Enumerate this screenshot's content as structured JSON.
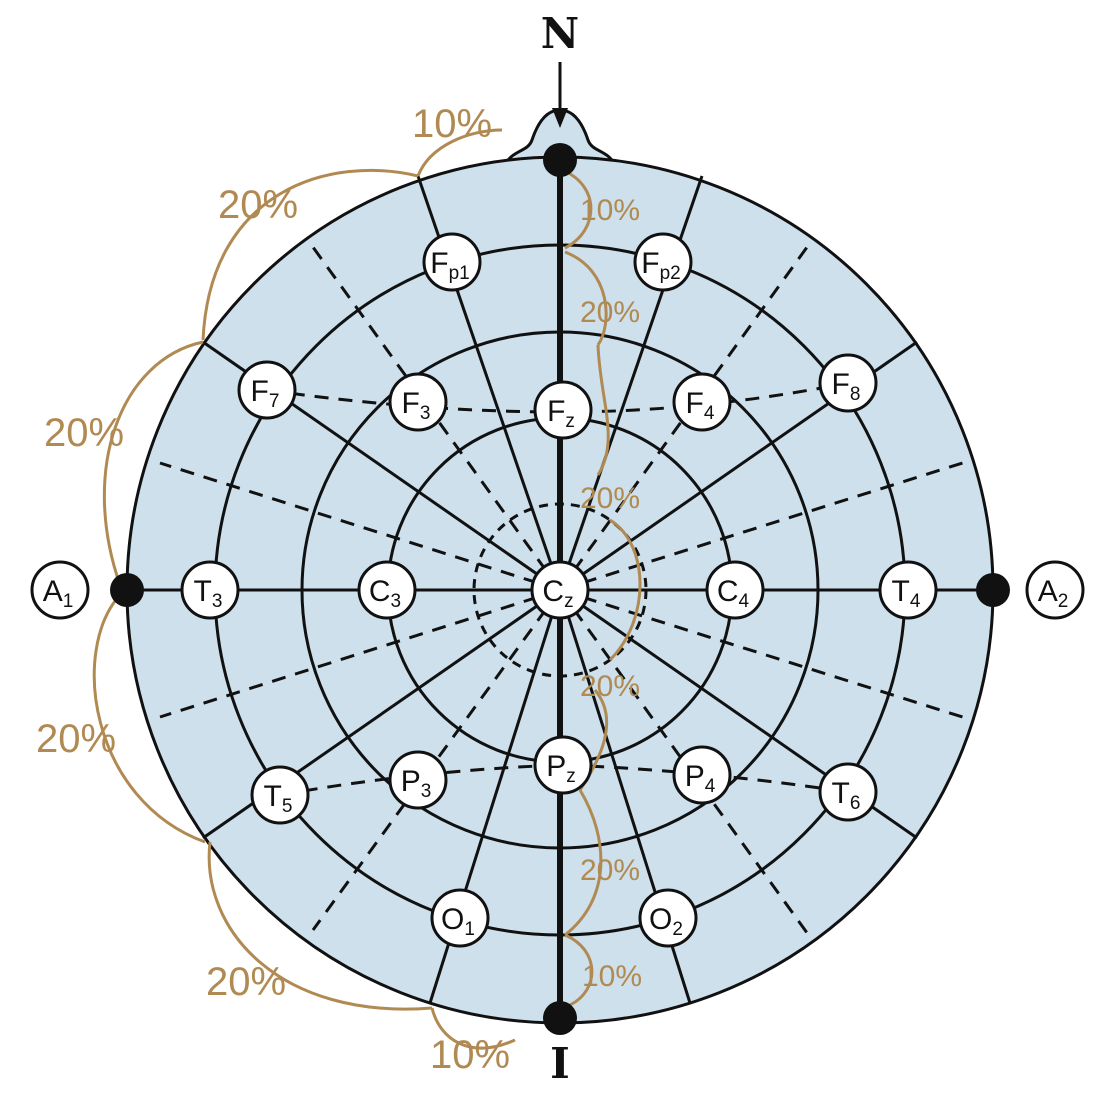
{
  "landmarks": {
    "nasion": "N",
    "inion": "I"
  },
  "colors": {
    "head_fill": "#cde0ec",
    "measure": "#b08a52",
    "line": "#111111"
  },
  "midline_percent": [
    "10%",
    "20%",
    "20%",
    "20%",
    "20%",
    "10%"
  ],
  "lateral_percent": [
    "10%",
    "20%",
    "20%",
    "20%",
    "20%",
    "10%"
  ],
  "electrodes": [
    {
      "main": "F",
      "sub": "p1"
    },
    {
      "main": "F",
      "sub": "p2"
    },
    {
      "main": "F",
      "sub": "7"
    },
    {
      "main": "F",
      "sub": "3"
    },
    {
      "main": "F",
      "sub": "z"
    },
    {
      "main": "F",
      "sub": "4"
    },
    {
      "main": "F",
      "sub": "8"
    },
    {
      "main": "A",
      "sub": "1"
    },
    {
      "main": "T",
      "sub": "3"
    },
    {
      "main": "C",
      "sub": "3"
    },
    {
      "main": "C",
      "sub": "z"
    },
    {
      "main": "C",
      "sub": "4"
    },
    {
      "main": "T",
      "sub": "4"
    },
    {
      "main": "A",
      "sub": "2"
    },
    {
      "main": "T",
      "sub": "5"
    },
    {
      "main": "P",
      "sub": "3"
    },
    {
      "main": "P",
      "sub": "z"
    },
    {
      "main": "P",
      "sub": "4"
    },
    {
      "main": "T",
      "sub": "6"
    },
    {
      "main": "O",
      "sub": "1"
    },
    {
      "main": "O",
      "sub": "2"
    }
  ]
}
